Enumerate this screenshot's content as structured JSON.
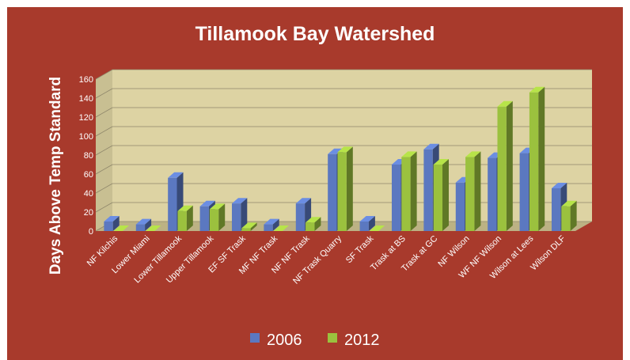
{
  "chart_data": {
    "type": "bar",
    "title": "Tillamook Bay Watershed",
    "xlabel": "",
    "ylabel": "Days Above Temp Standard",
    "ylim": [
      0,
      160
    ],
    "yticks": [
      0,
      20,
      40,
      60,
      80,
      100,
      120,
      140,
      160
    ],
    "grid": true,
    "legend_position": "bottom",
    "categories": [
      "NF Kilchis",
      "Lower Miami",
      "Lower Tillamook",
      "Upper Tillamook",
      "EF SF Trask",
      "MF NF Trask",
      "NF NF Trask",
      "NF Trask Quarry",
      "SF Trask",
      "Trask at BS",
      "Trask at GC",
      "NF Wilson",
      "WF NF Wilson",
      "Wilson at Lees",
      "Wilson DLF"
    ],
    "series": [
      {
        "name": "2006",
        "color": "#5b78c0",
        "values": [
          10,
          7,
          56,
          26,
          29,
          7,
          29,
          81,
          10,
          70,
          86,
          51,
          77,
          82,
          45
        ]
      },
      {
        "name": "2012",
        "color": "#9bc13e",
        "values": [
          0,
          0,
          21,
          23,
          3,
          0,
          9,
          83,
          0,
          78,
          70,
          78,
          131,
          146,
          26
        ]
      }
    ]
  },
  "colors": {
    "background": "#a83a2c",
    "plot_wall": "#ddd3a3",
    "plot_floor": "#bcb284",
    "gridline": "#8e866a"
  }
}
